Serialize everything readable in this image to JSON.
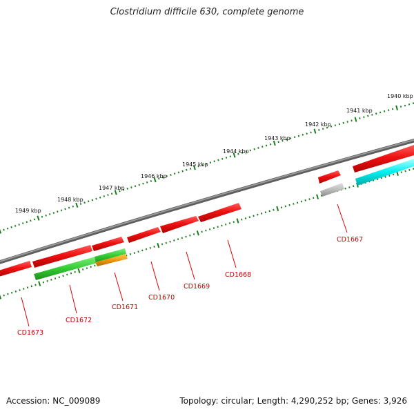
{
  "title": "Clostridium difficile 630, complete genome",
  "footer": {
    "accession": "Accession: NC_009089",
    "summary": "Topology: circular; Length: 4,290,252 bp; Genes: 3,926"
  },
  "colors": {
    "backbone": "#808080",
    "tick": "#1a7a1a",
    "cds": "#ee1111",
    "green_feature": "#33cc33",
    "orange_feature": "#ee9911",
    "grey_feature": "#bbbbbb",
    "cyan_feature": "#00eeee",
    "label": "#c00000"
  },
  "kbp_ticks": [
    "1940 kbp",
    "1941 kbp",
    "1942 kbp",
    "1943 kbp",
    "1944 kbp",
    "1945 kbp",
    "1946 kbp",
    "1947 kbp",
    "1948 kbp",
    "1949 kbp"
  ],
  "gene_labels": [
    "CD1667",
    "CD1668",
    "CD1669",
    "CD1670",
    "CD1671",
    "CD1672",
    "CD1673"
  ]
}
